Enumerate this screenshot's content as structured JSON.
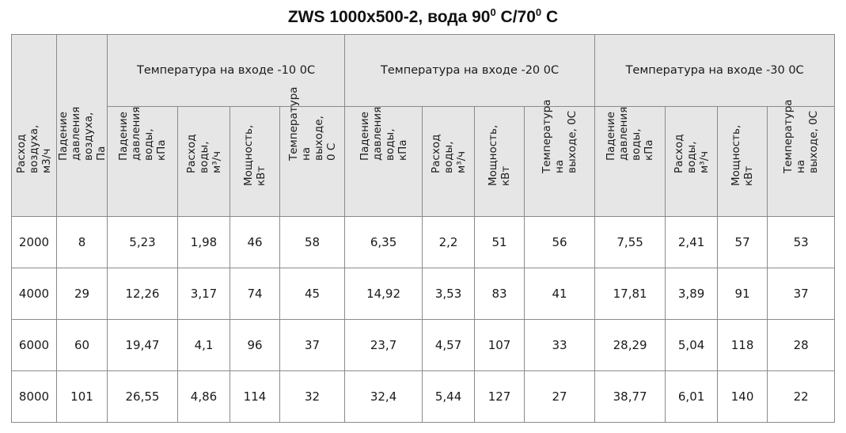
{
  "title": {
    "prefix": "ZWS 1000х500-2, вода 90",
    "sup1": "0",
    "mid": " С/70",
    "sup2": "0",
    "suffix": " С"
  },
  "headers": {
    "airflow": "Расход воздуха, м3/ч",
    "air_pressure_drop": "Падение давления воздуха,\nПа",
    "groups": [
      "Температура на входе -10 0С",
      "Температура на входе -20 0С",
      "Температура на входе -30 0С"
    ],
    "sub": {
      "water_pressure_drop": "Падение\nдавления воды,\nкПа",
      "water_flow": "Расход воды,\nм³/ч",
      "power": "Мощность, кВт",
      "outlet_temp_g1": "Температура на\nвыходе,\n0 С",
      "outlet_temp": "Температура на\nвыходе, 0С"
    }
  },
  "rows": [
    [
      "2000",
      "8",
      "5,23",
      "1,98",
      "46",
      "58",
      "6,35",
      "2,2",
      "51",
      "56",
      "7,55",
      "2,41",
      "57",
      "53"
    ],
    [
      "4000",
      "29",
      "12,26",
      "3,17",
      "74",
      "45",
      "14,92",
      "3,53",
      "83",
      "41",
      "17,81",
      "3,89",
      "91",
      "37"
    ],
    [
      "6000",
      "60",
      "19,47",
      "4,1",
      "96",
      "37",
      "23,7",
      "4,57",
      "107",
      "33",
      "28,29",
      "5,04",
      "118",
      "28"
    ],
    [
      "8000",
      "101",
      "26,55",
      "4,86",
      "114",
      "32",
      "32,4",
      "5,44",
      "127",
      "27",
      "38,77",
      "6,01",
      "140",
      "22"
    ]
  ]
}
